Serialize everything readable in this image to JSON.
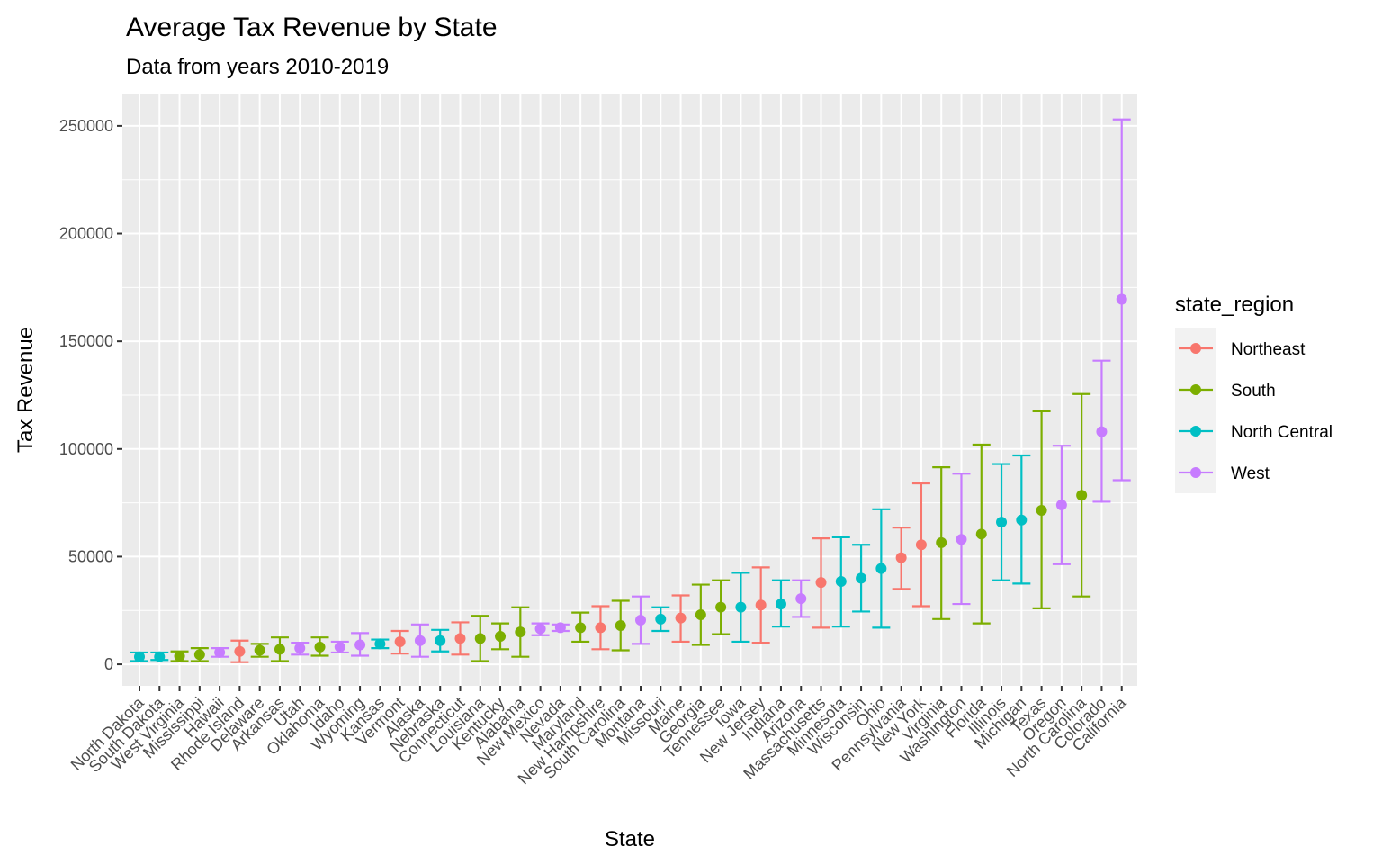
{
  "chart_data": {
    "type": "errorbar",
    "title": "Average Tax Revenue by State",
    "subtitle": "Data from years 2010-2019",
    "xlabel": "State",
    "ylabel": "Tax Revenue",
    "ylim": [
      -10000,
      265000
    ],
    "yticks": [
      "0",
      "50000",
      "100000",
      "150000",
      "200000",
      "250000"
    ],
    "ytick_values": [
      0,
      50000,
      100000,
      150000,
      200000,
      250000
    ],
    "grid": true,
    "legend": {
      "title": "state_region",
      "position": "right",
      "entries": [
        {
          "name": "Northeast",
          "color": "#F8766D"
        },
        {
          "name": "South",
          "color": "#7CAE00"
        },
        {
          "name": "North Central",
          "color": "#00BFC4"
        },
        {
          "name": "West",
          "color": "#C77CFF"
        }
      ]
    },
    "points": [
      {
        "state": "North Dakota",
        "region": "North Central",
        "mean": 3500,
        "low": 1500,
        "high": 5500
      },
      {
        "state": "South Dakota",
        "region": "North Central",
        "mean": 3500,
        "low": 2000,
        "high": 5500
      },
      {
        "state": "West Virginia",
        "region": "South",
        "mean": 3800,
        "low": 1500,
        "high": 6000
      },
      {
        "state": "Mississippi",
        "region": "South",
        "mean": 4500,
        "low": 1500,
        "high": 7500
      },
      {
        "state": "Hawaii",
        "region": "West",
        "mean": 5500,
        "low": 3500,
        "high": 7500
      },
      {
        "state": "Rhode Island",
        "region": "Northeast",
        "mean": 6000,
        "low": 1000,
        "high": 11000
      },
      {
        "state": "Delaware",
        "region": "South",
        "mean": 6500,
        "low": 3500,
        "high": 9500
      },
      {
        "state": "Arkansas",
        "region": "South",
        "mean": 7000,
        "low": 1500,
        "high": 12500
      },
      {
        "state": "Utah",
        "region": "West",
        "mean": 7500,
        "low": 4500,
        "high": 10000
      },
      {
        "state": "Oklahoma",
        "region": "South",
        "mean": 8000,
        "low": 4000,
        "high": 12500
      },
      {
        "state": "Idaho",
        "region": "West",
        "mean": 8000,
        "low": 5500,
        "high": 10500
      },
      {
        "state": "Wyoming",
        "region": "West",
        "mean": 9000,
        "low": 4000,
        "high": 14500
      },
      {
        "state": "Kansas",
        "region": "North Central",
        "mean": 9500,
        "low": 7500,
        "high": 11500
      },
      {
        "state": "Vermont",
        "region": "Northeast",
        "mean": 10500,
        "low": 5000,
        "high": 15500
      },
      {
        "state": "Alaska",
        "region": "West",
        "mean": 11000,
        "low": 3500,
        "high": 18500
      },
      {
        "state": "Nebraska",
        "region": "North Central",
        "mean": 11000,
        "low": 6000,
        "high": 16000
      },
      {
        "state": "Connecticut",
        "region": "Northeast",
        "mean": 12000,
        "low": 4500,
        "high": 19500
      },
      {
        "state": "Louisiana",
        "region": "South",
        "mean": 12000,
        "low": 1500,
        "high": 22500
      },
      {
        "state": "Kentucky",
        "region": "South",
        "mean": 13000,
        "low": 7000,
        "high": 19000
      },
      {
        "state": "Alabama",
        "region": "South",
        "mean": 15000,
        "low": 3500,
        "high": 26500
      },
      {
        "state": "New Mexico",
        "region": "West",
        "mean": 16500,
        "low": 13500,
        "high": 19000
      },
      {
        "state": "Nevada",
        "region": "West",
        "mean": 17000,
        "low": 15500,
        "high": 18500
      },
      {
        "state": "Maryland",
        "region": "South",
        "mean": 17000,
        "low": 10500,
        "high": 24000
      },
      {
        "state": "New Hampshire",
        "region": "Northeast",
        "mean": 17000,
        "low": 7000,
        "high": 27000
      },
      {
        "state": "South Carolina",
        "region": "South",
        "mean": 18000,
        "low": 6500,
        "high": 29500
      },
      {
        "state": "Montana",
        "region": "West",
        "mean": 20500,
        "low": 9500,
        "high": 31500
      },
      {
        "state": "Missouri",
        "region": "North Central",
        "mean": 21000,
        "low": 15500,
        "high": 26500
      },
      {
        "state": "Maine",
        "region": "Northeast",
        "mean": 21500,
        "low": 10500,
        "high": 32000
      },
      {
        "state": "Georgia",
        "region": "South",
        "mean": 23000,
        "low": 9000,
        "high": 37000
      },
      {
        "state": "Tennessee",
        "region": "South",
        "mean": 26500,
        "low": 14000,
        "high": 39000
      },
      {
        "state": "Iowa",
        "region": "North Central",
        "mean": 26500,
        "low": 10500,
        "high": 42500
      },
      {
        "state": "New Jersey",
        "region": "Northeast",
        "mean": 27500,
        "low": 10000,
        "high": 45000
      },
      {
        "state": "Indiana",
        "region": "North Central",
        "mean": 28000,
        "low": 17500,
        "high": 39000
      },
      {
        "state": "Arizona",
        "region": "West",
        "mean": 30500,
        "low": 22000,
        "high": 39000
      },
      {
        "state": "Massachusetts",
        "region": "Northeast",
        "mean": 38000,
        "low": 17000,
        "high": 58500
      },
      {
        "state": "Minnesota",
        "region": "North Central",
        "mean": 38500,
        "low": 17500,
        "high": 59000
      },
      {
        "state": "Wisconsin",
        "region": "North Central",
        "mean": 40000,
        "low": 24500,
        "high": 55500
      },
      {
        "state": "Ohio",
        "region": "North Central",
        "mean": 44500,
        "low": 17000,
        "high": 72000
      },
      {
        "state": "Pennsylvania",
        "region": "Northeast",
        "mean": 49500,
        "low": 35000,
        "high": 63500
      },
      {
        "state": "New York",
        "region": "Northeast",
        "mean": 55500,
        "low": 27000,
        "high": 84000
      },
      {
        "state": "Virginia",
        "region": "South",
        "mean": 56500,
        "low": 21000,
        "high": 91500
      },
      {
        "state": "Washington",
        "region": "West",
        "mean": 58000,
        "low": 28000,
        "high": 88500
      },
      {
        "state": "Florida",
        "region": "South",
        "mean": 60500,
        "low": 19000,
        "high": 102000
      },
      {
        "state": "Illinois",
        "region": "North Central",
        "mean": 66000,
        "low": 39000,
        "high": 93000
      },
      {
        "state": "Michigan",
        "region": "North Central",
        "mean": 67000,
        "low": 37500,
        "high": 97000
      },
      {
        "state": "Texas",
        "region": "South",
        "mean": 71500,
        "low": 26000,
        "high": 117500
      },
      {
        "state": "Oregon",
        "region": "West",
        "mean": 74000,
        "low": 46500,
        "high": 101500
      },
      {
        "state": "North Carolina",
        "region": "South",
        "mean": 78500,
        "low": 31500,
        "high": 125500
      },
      {
        "state": "Colorado",
        "region": "West",
        "mean": 108000,
        "low": 75500,
        "high": 141000
      },
      {
        "state": "California",
        "region": "West",
        "mean": 169500,
        "low": 85500,
        "high": 253000
      }
    ]
  }
}
